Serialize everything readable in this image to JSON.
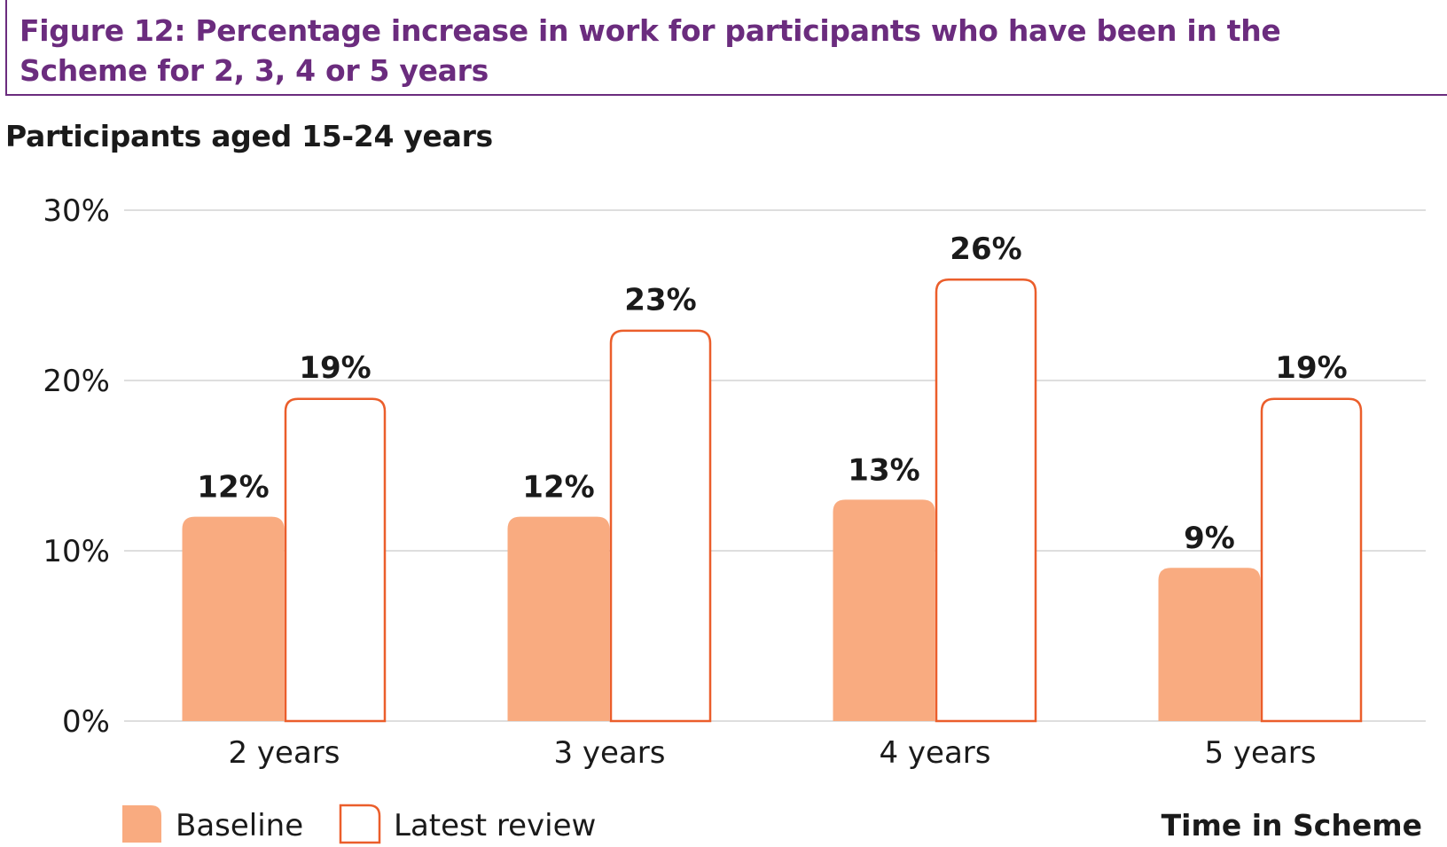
{
  "figure": {
    "title": "Figure 12: Percentage increase in work for participants who have been in the Scheme for 2, 3, 4 or 5 years"
  },
  "chart_data": {
    "type": "bar",
    "title": "Participants aged 15-24 years",
    "xlabel": "Time in Scheme",
    "ylabel": "",
    "categories": [
      "2 years",
      "3 years",
      "4 years",
      "5 years"
    ],
    "ylim": [
      0,
      30
    ],
    "yticks": [
      0,
      10,
      20,
      30
    ],
    "ytick_labels": [
      "0%",
      "10%",
      "20%",
      "30%"
    ],
    "grid": true,
    "legend_position": "bottom-left",
    "series": [
      {
        "name": "Baseline",
        "values": [
          12,
          12,
          13,
          9
        ],
        "labels": [
          "12%",
          "12%",
          "13%",
          "9%"
        ],
        "style": "filled",
        "color": "#f9ab80"
      },
      {
        "name": "Latest review",
        "values": [
          19,
          23,
          26,
          19
        ],
        "labels": [
          "19%",
          "23%",
          "26%",
          "19%"
        ],
        "style": "outline",
        "color": "#eb5e2b"
      }
    ]
  },
  "colors": {
    "title": "#6b2c7e",
    "grid": "#d4d4d4",
    "text": "#1a1a1a"
  }
}
